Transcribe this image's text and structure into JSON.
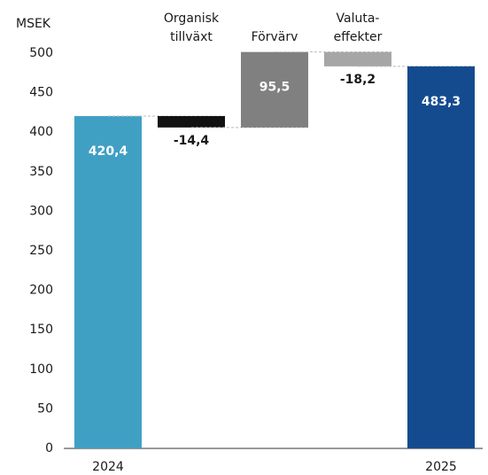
{
  "chart_data": {
    "type": "waterfall",
    "y_axis_label": "MSEK",
    "categories": [
      [
        "2024"
      ],
      [
        "Organisk",
        "tillväxt"
      ],
      [
        "Förvärv"
      ],
      [
        "Valuta-",
        "effekter"
      ],
      [
        "2025"
      ]
    ],
    "measure": [
      "absolute",
      "relative",
      "relative",
      "relative",
      "total"
    ],
    "values": [
      420.4,
      -14.4,
      95.5,
      -18.2,
      483.3
    ],
    "value_labels": [
      "420,4",
      "-14,4",
      "95,5",
      "-18,2",
      "483,3"
    ],
    "colors": [
      "#40a0c4",
      "#111111",
      "#808080",
      "#a6a6a6",
      "#144b8f"
    ],
    "ylim": [
      0,
      500
    ],
    "yticks": [
      0,
      50,
      100,
      150,
      200,
      250,
      300,
      350,
      400,
      450,
      500
    ]
  }
}
